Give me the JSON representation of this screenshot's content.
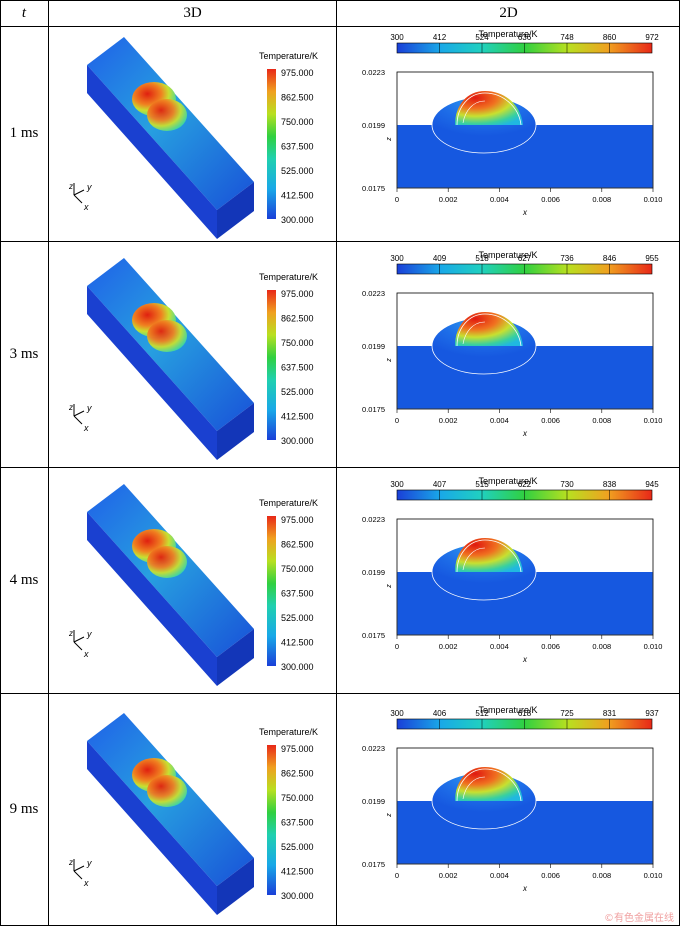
{
  "header": {
    "col_t": "t",
    "col_3d": "3D",
    "col_2d": "2D"
  },
  "colors": {
    "cold": "#1a4fd0",
    "hot": "#e8271a"
  },
  "legend3d": {
    "title": "Temperature/K",
    "ticks": [
      "975.000",
      "862.500",
      "750.000",
      "637.500",
      "525.000",
      "412.500",
      "300.000"
    ]
  },
  "axis_labels": {
    "x": "x",
    "y": "y",
    "z": "z"
  },
  "plot2d": {
    "title": "Temperature/K",
    "y_ticks": [
      "0.0223",
      "0.0199",
      "0.0175"
    ],
    "x_ticks": [
      "0",
      "0.002",
      "0.004",
      "0.006",
      "0.008",
      "0.010"
    ],
    "x_label": "x",
    "y_label": "z"
  },
  "rows": [
    {
      "time": "1 ms",
      "scale2d": [
        "300",
        "412",
        "524",
        "636",
        "748",
        "860",
        "972"
      ]
    },
    {
      "time": "3 ms",
      "scale2d": [
        "300",
        "409",
        "518",
        "627",
        "736",
        "846",
        "955"
      ]
    },
    {
      "time": "4 ms",
      "scale2d": [
        "300",
        "407",
        "515",
        "622",
        "730",
        "838",
        "945"
      ]
    },
    {
      "time": "9 ms",
      "scale2d": [
        "300",
        "406",
        "512",
        "618",
        "725",
        "831",
        "937"
      ]
    }
  ],
  "watermark": "©有色金属在线"
}
